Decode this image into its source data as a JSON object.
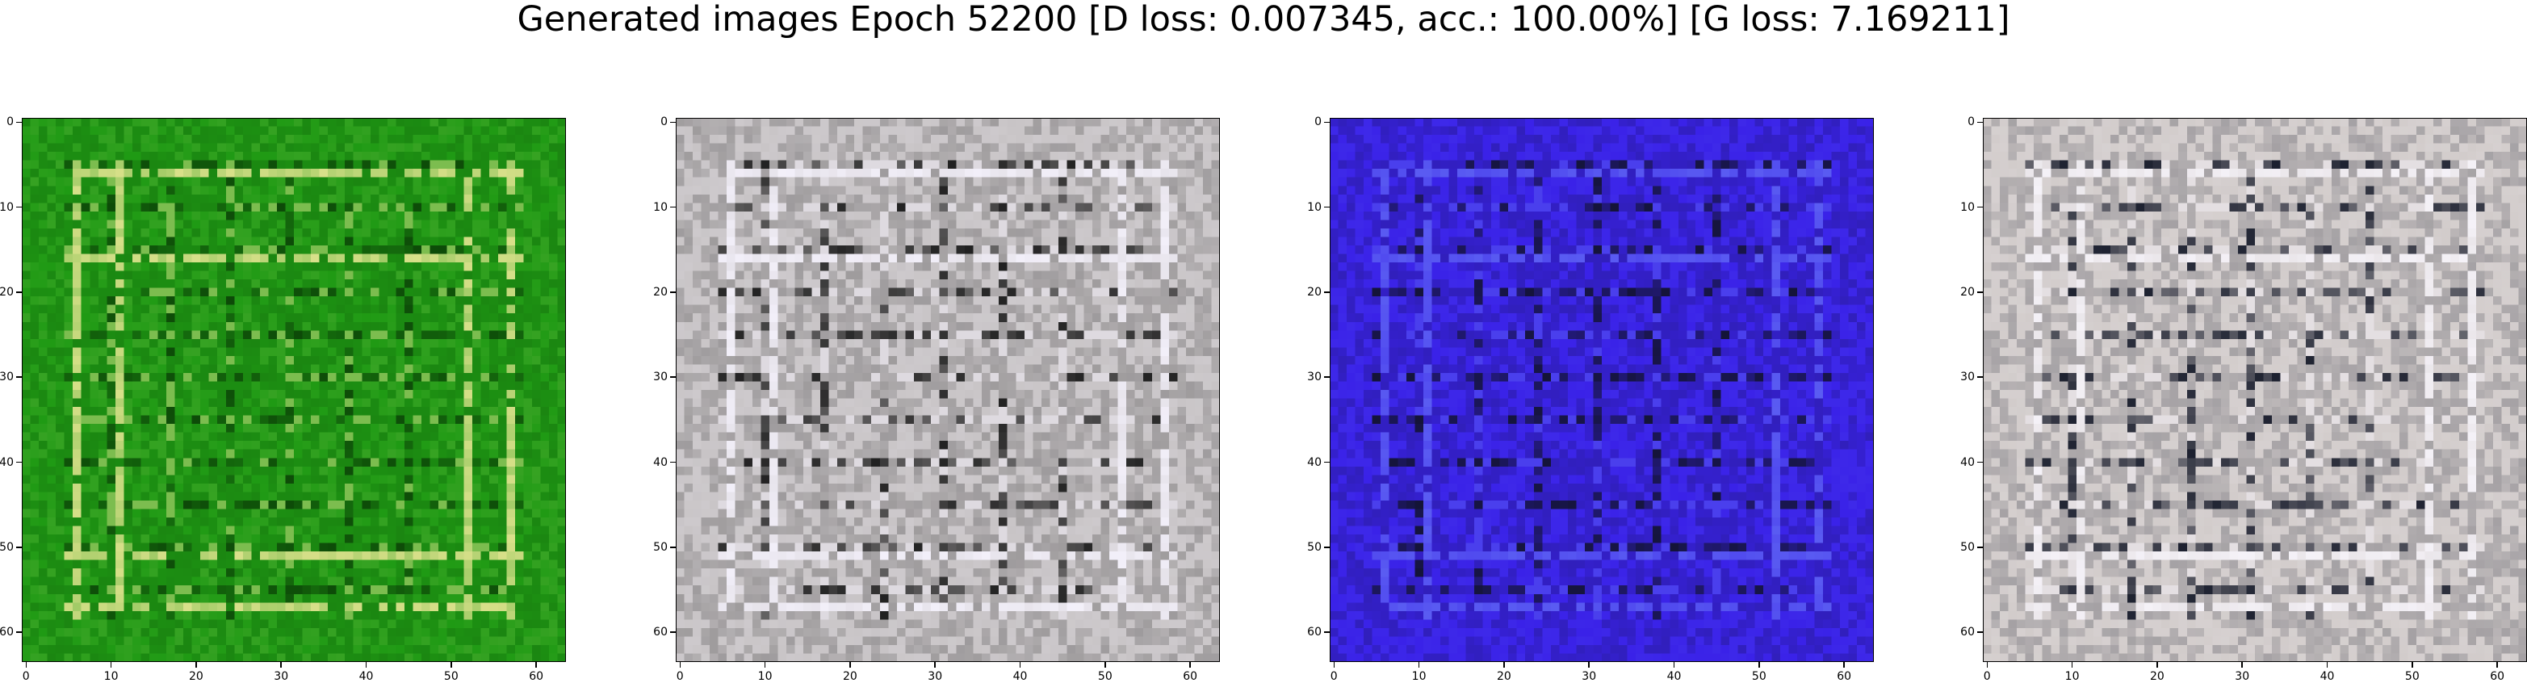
{
  "figure": {
    "title": "Generated images Epoch 52200 [D loss: 0.007345, acc.: 100.00%] [G loss: 7.169211]"
  },
  "axes": {
    "x_ticks": [
      "0",
      "10",
      "20",
      "30",
      "40",
      "50",
      "60"
    ],
    "y_ticks": [
      "0",
      "10",
      "20",
      "30",
      "40",
      "50",
      "60"
    ],
    "xlim": [
      -0.5,
      63.5
    ],
    "ylim": [
      63.5,
      -0.5
    ],
    "grid": false
  },
  "panels": [
    {
      "name": "generated-image-1",
      "tint": "green",
      "base": "#1f9a14",
      "line": "#d9e08a",
      "dark": "#0d4a08",
      "seed": 11
    },
    {
      "name": "generated-image-2",
      "tint": "gray",
      "base": "#c8c4c6",
      "line": "#f3f0fa",
      "dark": "#202020",
      "seed": 23
    },
    {
      "name": "generated-image-3",
      "tint": "blue",
      "base": "#3a22e8",
      "line": "#5a5cf2",
      "dark": "#141437",
      "seed": 37
    },
    {
      "name": "generated-image-4",
      "tint": "gray",
      "base": "#d2cccb",
      "line": "#f5f2f8",
      "dark": "#1d2130",
      "seed": 53
    }
  ]
}
